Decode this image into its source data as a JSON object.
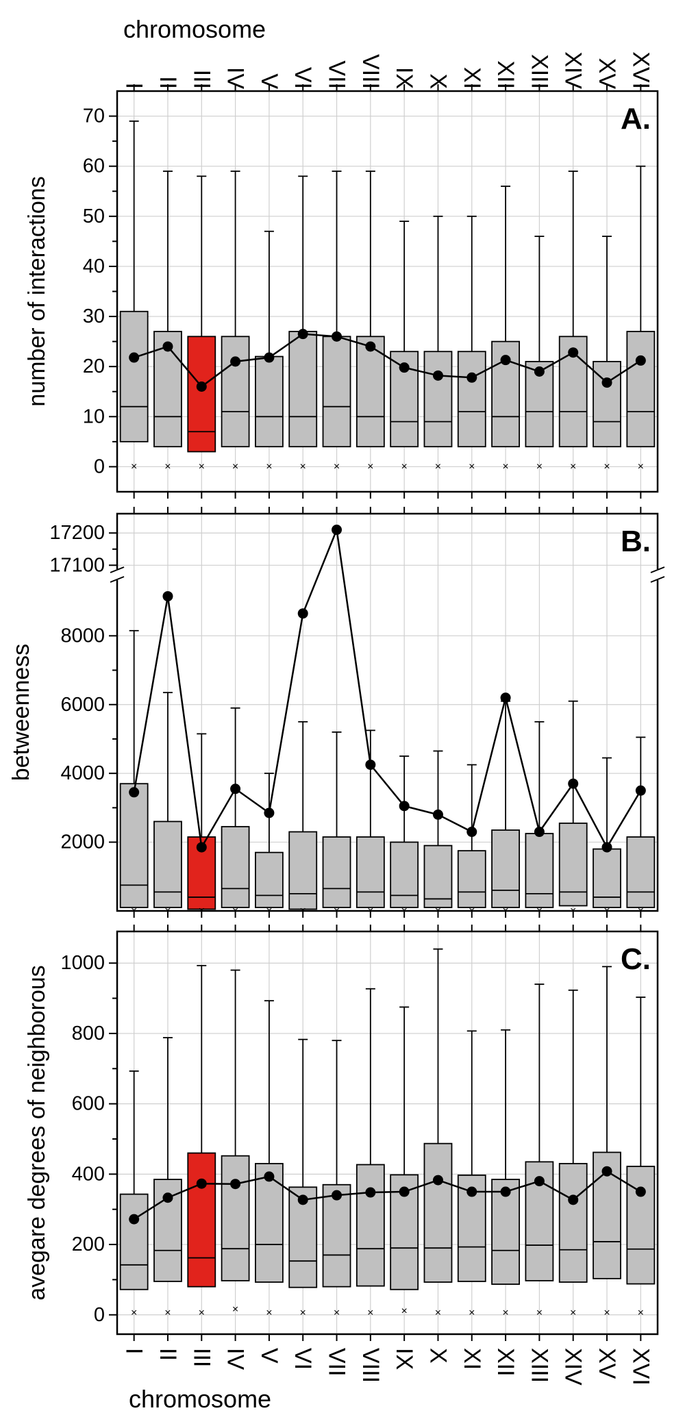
{
  "chart_data": {
    "type": "box",
    "chromosomes": [
      "I",
      "II",
      "III",
      "IV",
      "V",
      "VI",
      "VII",
      "VIII",
      "IX",
      "X",
      "XI",
      "XII",
      "XIII",
      "XIV",
      "XV",
      "XVI"
    ],
    "highlight_index": 2,
    "colors": {
      "box": "#c0c0c0",
      "highlight": "#e1231c",
      "mean": "#000000",
      "grid": "#cfcfcf"
    },
    "top_axis_label": "chromosome",
    "bottom_axis_label": "chromosome",
    "panels": [
      {
        "letter": "A.",
        "ylabel": "number of interactions",
        "yticks": [
          0,
          10,
          20,
          30,
          40,
          50,
          60,
          70
        ],
        "ylim": [
          -5,
          75
        ],
        "boxes": [
          {
            "q1": 5,
            "median": 12,
            "q3": 31,
            "max": 69,
            "min": 0
          },
          {
            "q1": 4,
            "median": 10,
            "q3": 27,
            "max": 59,
            "min": 0
          },
          {
            "q1": 3,
            "median": 7,
            "q3": 26,
            "max": 58,
            "min": 0
          },
          {
            "q1": 4,
            "median": 11,
            "q3": 26,
            "max": 59,
            "min": 0
          },
          {
            "q1": 4,
            "median": 10,
            "q3": 22,
            "max": 47,
            "min": 0
          },
          {
            "q1": 4,
            "median": 10,
            "q3": 27,
            "max": 58,
            "min": 0
          },
          {
            "q1": 4,
            "median": 12,
            "q3": 26,
            "max": 59,
            "min": 0
          },
          {
            "q1": 4,
            "median": 10,
            "q3": 26,
            "max": 59,
            "min": 0
          },
          {
            "q1": 4,
            "median": 9,
            "q3": 23,
            "max": 49,
            "min": 0
          },
          {
            "q1": 4,
            "median": 9,
            "q3": 23,
            "max": 50,
            "min": 0
          },
          {
            "q1": 4,
            "median": 11,
            "q3": 23,
            "max": 50,
            "min": 0
          },
          {
            "q1": 4,
            "median": 10,
            "q3": 25,
            "max": 56,
            "min": 0
          },
          {
            "q1": 4,
            "median": 11,
            "q3": 21,
            "max": 46,
            "min": 0
          },
          {
            "q1": 4,
            "median": 11,
            "q3": 26,
            "max": 59,
            "min": 0
          },
          {
            "q1": 4,
            "median": 9,
            "q3": 21,
            "max": 46,
            "min": 0
          },
          {
            "q1": 4,
            "median": 11,
            "q3": 27,
            "max": 60,
            "min": 0
          }
        ],
        "means": [
          21.8,
          24.0,
          16.0,
          21.0,
          21.8,
          26.5,
          26.0,
          24.0,
          19.8,
          18.2,
          17.8,
          21.3,
          19.0,
          22.8,
          16.8,
          21.2
        ]
      },
      {
        "letter": "B.",
        "ylabel": "betweenness",
        "yticks": [
          2000,
          4000,
          6000,
          8000
        ],
        "upper_yticks": [
          17100,
          17200
        ],
        "ylim": [
          0,
          9600
        ],
        "upper_ylim": [
          17090,
          17260
        ],
        "axis_break": true,
        "boxes": [
          {
            "q1": 100,
            "median": 750,
            "q3": 3700,
            "max": 8150,
            "min": 0
          },
          {
            "q1": 100,
            "median": 550,
            "q3": 2600,
            "max": 6350,
            "min": 0
          },
          {
            "q1": 50,
            "median": 400,
            "q3": 2150,
            "max": 5150,
            "min": 0
          },
          {
            "q1": 100,
            "median": 650,
            "q3": 2450,
            "max": 5900,
            "min": 0
          },
          {
            "q1": 100,
            "median": 450,
            "q3": 1700,
            "max": 4000,
            "min": 0
          },
          {
            "q1": 50,
            "median": 500,
            "q3": 2300,
            "max": 5500,
            "min": 0
          },
          {
            "q1": 100,
            "median": 650,
            "q3": 2150,
            "max": 5200,
            "min": 0
          },
          {
            "q1": 100,
            "median": 550,
            "q3": 2150,
            "max": 5250,
            "min": 0
          },
          {
            "q1": 100,
            "median": 450,
            "q3": 2000,
            "max": 4500,
            "min": 0
          },
          {
            "q1": 100,
            "median": 350,
            "q3": 1900,
            "max": 4650,
            "min": 0
          },
          {
            "q1": 100,
            "median": 550,
            "q3": 1750,
            "max": 4250,
            "min": 0
          },
          {
            "q1": 100,
            "median": 600,
            "q3": 2350,
            "max": 6100,
            "min": 0
          },
          {
            "q1": 100,
            "median": 500,
            "q3": 2250,
            "max": 5500,
            "min": 0
          },
          {
            "q1": 150,
            "median": 550,
            "q3": 2550,
            "max": 6100,
            "min": 0
          },
          {
            "q1": 100,
            "median": 400,
            "q3": 1800,
            "max": 4450,
            "min": 0
          },
          {
            "q1": 100,
            "median": 550,
            "q3": 2150,
            "max": 5050,
            "min": 0
          }
        ],
        "means": [
          3450,
          9150,
          1850,
          3550,
          2850,
          8650,
          17210,
          4250,
          3050,
          2800,
          2300,
          6200,
          2300,
          3700,
          1850,
          3500
        ]
      },
      {
        "letter": "C.",
        "ylabel": "avegare degrees of neighborous",
        "yticks": [
          0,
          200,
          400,
          600,
          800,
          1000
        ],
        "ylim": [
          -55,
          1090
        ],
        "boxes": [
          {
            "q1": 72,
            "median": 142,
            "q3": 343,
            "max": 693,
            "min": 5
          },
          {
            "q1": 95,
            "median": 183,
            "q3": 385,
            "max": 788,
            "min": 5
          },
          {
            "q1": 80,
            "median": 162,
            "q3": 460,
            "max": 993,
            "min": 5
          },
          {
            "q1": 97,
            "median": 188,
            "q3": 452,
            "max": 980,
            "min": 15
          },
          {
            "q1": 93,
            "median": 200,
            "q3": 430,
            "max": 893,
            "min": 5
          },
          {
            "q1": 78,
            "median": 153,
            "q3": 363,
            "max": 783,
            "min": 5
          },
          {
            "q1": 80,
            "median": 170,
            "q3": 370,
            "max": 780,
            "min": 5
          },
          {
            "q1": 82,
            "median": 188,
            "q3": 427,
            "max": 927,
            "min": 5
          },
          {
            "q1": 72,
            "median": 190,
            "q3": 398,
            "max": 875,
            "min": 10
          },
          {
            "q1": 93,
            "median": 190,
            "q3": 487,
            "max": 1040,
            "min": 5
          },
          {
            "q1": 95,
            "median": 193,
            "q3": 397,
            "max": 807,
            "min": 5
          },
          {
            "q1": 87,
            "median": 183,
            "q3": 385,
            "max": 810,
            "min": 5
          },
          {
            "q1": 97,
            "median": 198,
            "q3": 435,
            "max": 940,
            "min": 5
          },
          {
            "q1": 93,
            "median": 185,
            "q3": 430,
            "max": 923,
            "min": 5
          },
          {
            "q1": 103,
            "median": 208,
            "q3": 462,
            "max": 990,
            "min": 5
          },
          {
            "q1": 88,
            "median": 187,
            "q3": 422,
            "max": 903,
            "min": 5
          }
        ],
        "means": [
          272,
          333,
          373,
          372,
          393,
          327,
          340,
          348,
          350,
          383,
          350,
          350,
          380,
          327,
          408,
          350
        ]
      }
    ]
  }
}
